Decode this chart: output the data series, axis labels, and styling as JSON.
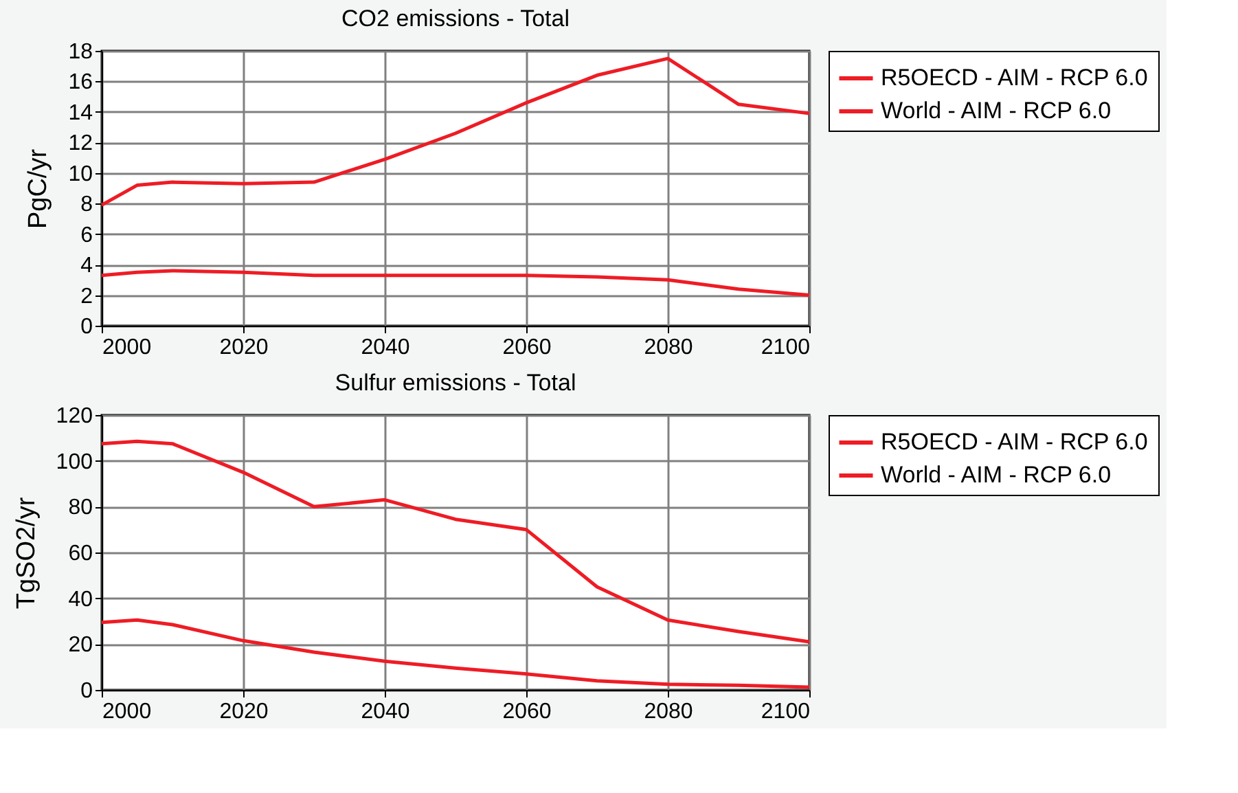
{
  "chart_data": [
    {
      "type": "line",
      "title": "CO2 emissions - Total",
      "ylabel": "PgC/yr",
      "x": [
        2000,
        2005,
        2010,
        2020,
        2030,
        2040,
        2050,
        2060,
        2070,
        2080,
        2090,
        2100
      ],
      "series": [
        {
          "name": "R5OECD - AIM - RCP 6.0",
          "color": "#ee1c25",
          "values": [
            3.3,
            3.5,
            3.6,
            3.5,
            3.3,
            3.3,
            3.3,
            3.3,
            3.2,
            3.0,
            2.4,
            2.0
          ]
        },
        {
          "name": "World - AIM - RCP 6.0",
          "color": "#ee1c25",
          "values": [
            7.9,
            9.2,
            9.4,
            9.3,
            9.4,
            10.9,
            12.6,
            14.6,
            16.4,
            17.5,
            14.5,
            13.9
          ]
        }
      ],
      "xlim": [
        2000,
        2100
      ],
      "xticks": [
        2000,
        2020,
        2040,
        2060,
        2080,
        2100
      ],
      "ylim": [
        0,
        18
      ],
      "yticks": [
        0,
        2,
        4,
        6,
        8,
        10,
        12,
        14,
        16,
        18
      ],
      "grid": true,
      "legend": "right",
      "marker": "none",
      "line_style": "solid"
    },
    {
      "type": "line",
      "title": "Sulfur emissions - Total",
      "ylabel": "TgSO2/yr",
      "x": [
        2000,
        2005,
        2010,
        2020,
        2030,
        2040,
        2050,
        2060,
        2070,
        2080,
        2090,
        2100
      ],
      "series": [
        {
          "name": "R5OECD - AIM - RCP 6.0",
          "color": "#ee1c25",
          "values": [
            29.5,
            30.5,
            28.5,
            21.5,
            16.5,
            12.5,
            9.5,
            7,
            4,
            2.5,
            2,
            1.2
          ]
        },
        {
          "name": "World - AIM - RCP 6.0",
          "color": "#ee1c25",
          "values": [
            107.5,
            108.5,
            107.5,
            95,
            80,
            83,
            74.5,
            70,
            45,
            30.5,
            25.5,
            21
          ]
        }
      ],
      "xlim": [
        2000,
        2100
      ],
      "xticks": [
        2000,
        2020,
        2040,
        2060,
        2080,
        2100
      ],
      "ylim": [
        0,
        120
      ],
      "yticks": [
        0,
        20,
        40,
        60,
        80,
        100,
        120
      ],
      "grid": true,
      "legend": "right",
      "marker": "none",
      "line_style": "solid"
    }
  ]
}
